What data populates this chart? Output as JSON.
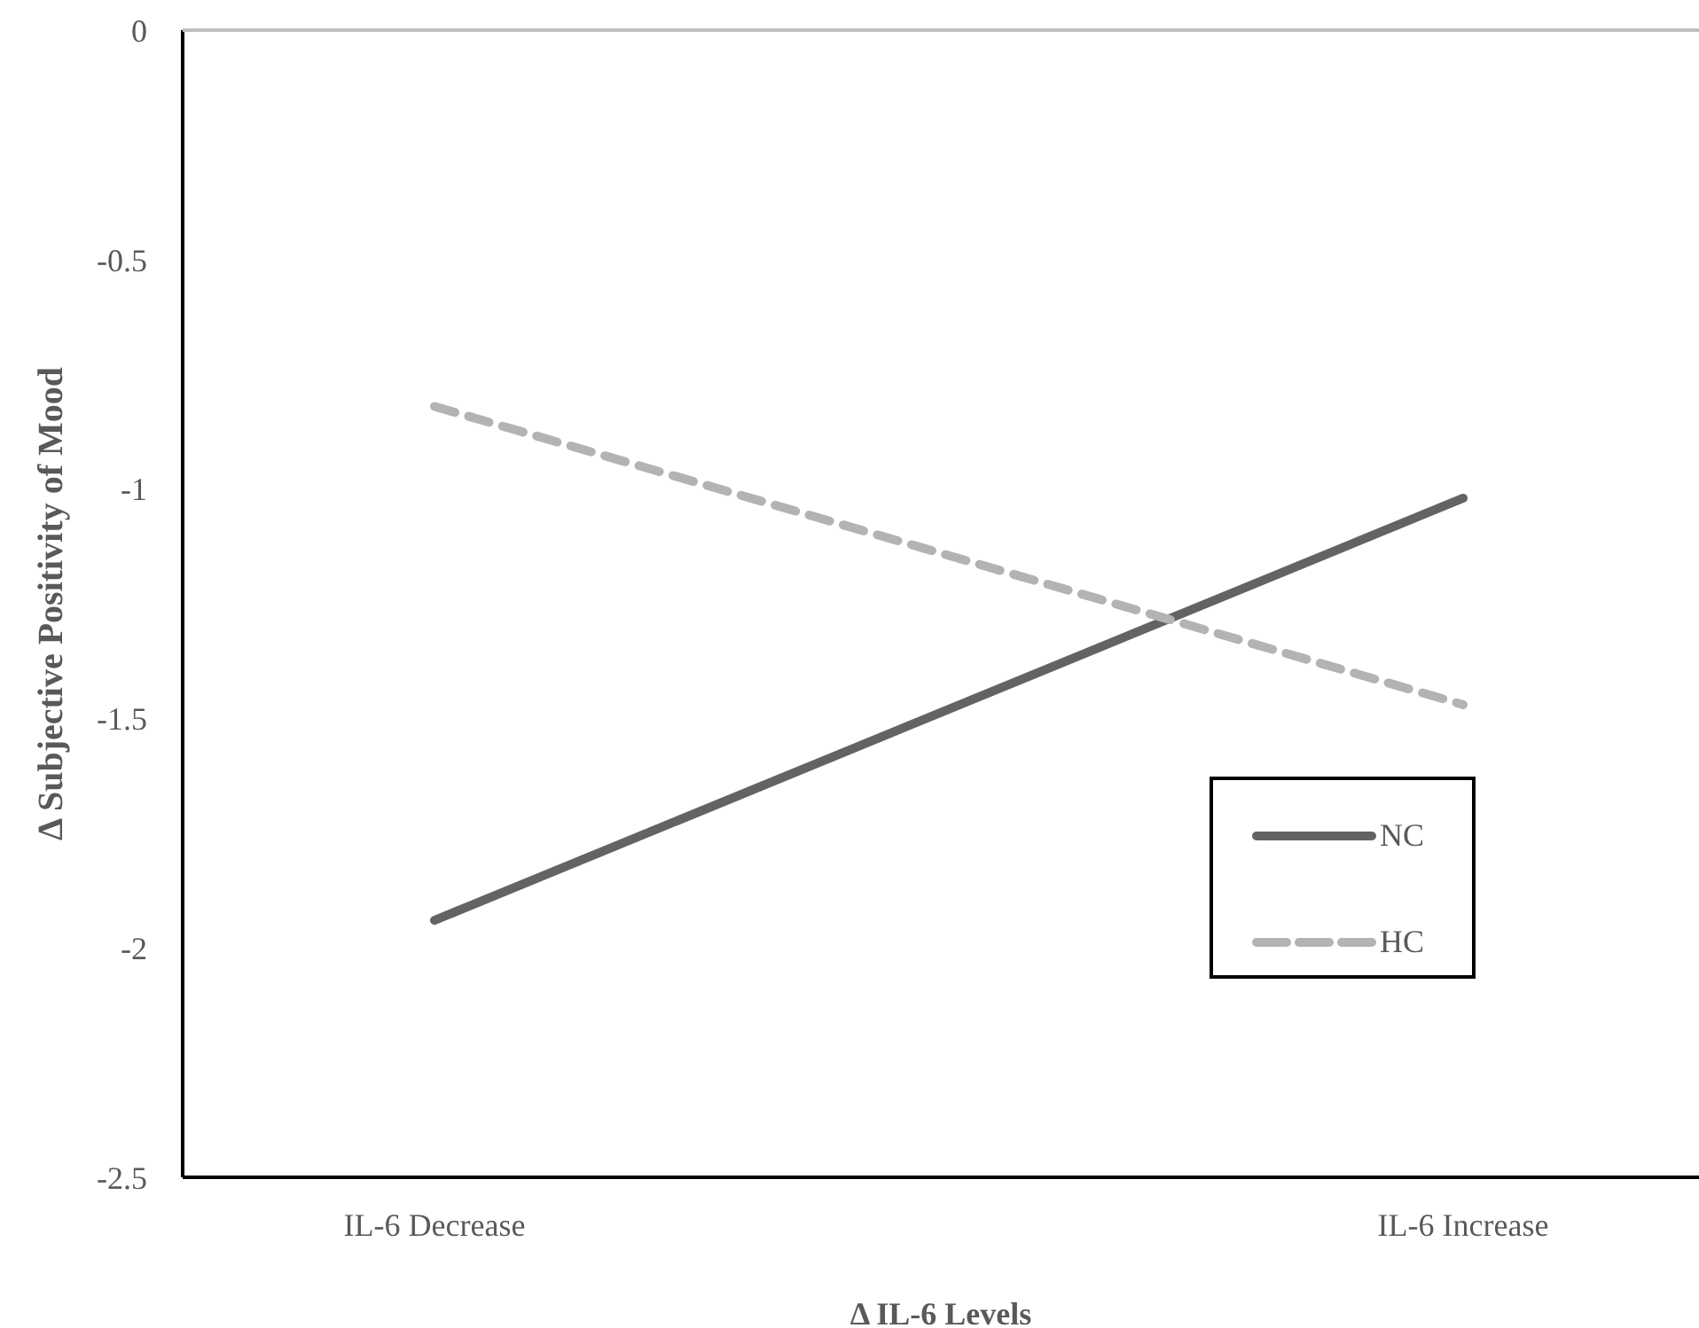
{
  "chart_data": {
    "type": "line",
    "xlabel": "Δ IL-6  Levels",
    "ylabel": "Δ Subjective Positivity of Mood",
    "categories": [
      "IL-6 Decrease",
      "IL-6 Increase"
    ],
    "series": [
      {
        "name": "NC",
        "color": "#636363",
        "values": [
          -1.94,
          -1.02
        ],
        "line_style": "solid"
      },
      {
        "name": "HC",
        "color": "#b3b3b3",
        "values": [
          -0.82,
          -1.47
        ],
        "line_style": "dashed"
      }
    ],
    "ylim": [
      -2.5,
      0
    ],
    "yticks": [
      0,
      -0.5,
      -1,
      -1.5,
      -2,
      -2.5
    ],
    "grid": false,
    "legend": "right",
    "marker": "none"
  }
}
